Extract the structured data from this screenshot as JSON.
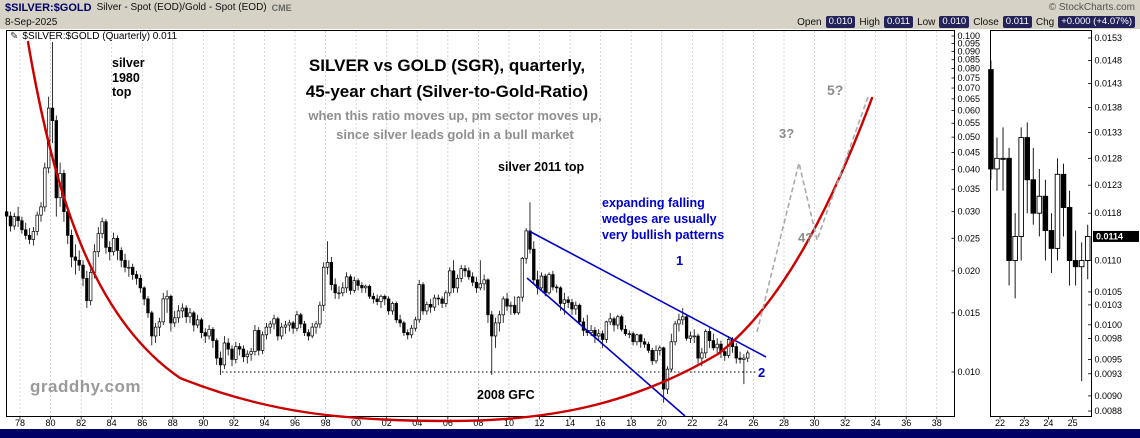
{
  "header": {
    "symbol": "$SILVER:$GOLD",
    "description": "Silver - Spot (EOD)/Gold - Spot (EOD)",
    "exchange": "CME",
    "copyright": "© StockCharts.com",
    "date": "8-Sep-2025",
    "quote": {
      "open_label": "Open",
      "open": "0.010",
      "high_label": "High",
      "high": "0.011",
      "low_label": "Low",
      "low": "0.010",
      "close_label": "Close",
      "close": "0.011",
      "chg_label": "Chg",
      "chg": "+0.000 (+4.07%)"
    }
  },
  "icons": {
    "annotation_mark": "✎"
  },
  "chart_label": "$SILVER:$GOLD (Quarterly) 0.011",
  "annotations": {
    "s1980": {
      "l1": "silver",
      "l2": "1980",
      "l3": "top"
    },
    "title": {
      "l1": "SILVER vs GOLD (SGR), quarterly,",
      "l2": "45-year chart (Silver-to-Gold-Ratio)"
    },
    "subtitle": {
      "l1": "when this ratio moves up, pm sector moves up,",
      "l2": "since silver leads gold in a bull market"
    },
    "s2011": "silver 2011 top",
    "wedge": {
      "l1": "expanding falling",
      "l2": "wedges are usually",
      "l3": "very bullish patterns"
    },
    "waves": {
      "w1": "1",
      "w2": "2",
      "w3": "3?",
      "w4": "4?",
      "w5": "5?"
    },
    "gfc": "2008 GFC",
    "watermark": "graddhy.com"
  },
  "colors": {
    "header_bg": "#d6d2c6",
    "quote_chip_bg": "#23235a",
    "cup_red": "#cc0000",
    "pattern_blue": "#0000cc",
    "projection_gray": "#aaaaaa",
    "grid": "#cccccc",
    "bottom_bar": "#000066",
    "candle_up": "#ffffff",
    "candle_down": "#000000"
  },
  "chart_data": {
    "type": "candlestick",
    "symbol": "$SILVER:$GOLD",
    "timeframe": "Quarterly",
    "scale": "log",
    "title": "SILVER vs GOLD (SGR), quarterly, 45-year chart (Silver-to-Gold-Ratio)",
    "start_year": 1977,
    "interval_years": 0.25,
    "support_level": 0.01,
    "last_close": 0.0114,
    "x_ticks": [
      "78",
      "80",
      "82",
      "84",
      "86",
      "88",
      "90",
      "92",
      "94",
      "96",
      "98",
      "00",
      "02",
      "04",
      "06",
      "08",
      "10",
      "12",
      "14",
      "16",
      "18",
      "20",
      "22",
      "24",
      "26",
      "28",
      "30",
      "32",
      "34",
      "36",
      "38"
    ],
    "x_tick_years": [
      1978,
      1980,
      1982,
      1984,
      1986,
      1988,
      1990,
      1992,
      1994,
      1996,
      1998,
      2000,
      2002,
      2004,
      2006,
      2008,
      2010,
      2012,
      2014,
      2016,
      2018,
      2020,
      2022,
      2024,
      2026,
      2028,
      2030,
      2032,
      2034,
      2036,
      2038
    ],
    "y_ticks": [
      0.1,
      0.095,
      0.09,
      0.085,
      0.08,
      0.075,
      0.07,
      0.065,
      0.06,
      0.055,
      0.05,
      0.045,
      0.04,
      0.035,
      0.03,
      0.025,
      0.02,
      0.015,
      0.01
    ],
    "ohlc": [
      [
        0.03,
        0.032,
        0.028,
        0.0291
      ],
      [
        0.0291,
        0.03,
        0.0262,
        0.0272
      ],
      [
        0.0272,
        0.0298,
        0.0265,
        0.029
      ],
      [
        0.029,
        0.031,
        0.027,
        0.0282
      ],
      [
        0.0282,
        0.029,
        0.0258,
        0.0265
      ],
      [
        0.0265,
        0.0278,
        0.0248,
        0.0255
      ],
      [
        0.0255,
        0.0268,
        0.024,
        0.0248
      ],
      [
        0.0248,
        0.027,
        0.0238,
        0.0262
      ],
      [
        0.0262,
        0.03,
        0.0255,
        0.0293
      ],
      [
        0.0293,
        0.032,
        0.028,
        0.031
      ],
      [
        0.031,
        0.042,
        0.03,
        0.0405
      ],
      [
        0.0405,
        0.066,
        0.039,
        0.061
      ],
      [
        0.061,
        0.096,
        0.048,
        0.056
      ],
      [
        0.056,
        0.058,
        0.029,
        0.033
      ],
      [
        0.033,
        0.042,
        0.031,
        0.039
      ],
      [
        0.039,
        0.04,
        0.028,
        0.03
      ],
      [
        0.03,
        0.031,
        0.024,
        0.0255
      ],
      [
        0.0255,
        0.0265,
        0.0205,
        0.022
      ],
      [
        0.022,
        0.024,
        0.0195,
        0.0215
      ],
      [
        0.0215,
        0.023,
        0.02,
        0.0208
      ],
      [
        0.0208,
        0.0215,
        0.018,
        0.019
      ],
      [
        0.019,
        0.02,
        0.0155,
        0.0163
      ],
      [
        0.0163,
        0.0205,
        0.0158,
        0.0198
      ],
      [
        0.0198,
        0.024,
        0.019,
        0.0228
      ],
      [
        0.0228,
        0.027,
        0.022,
        0.0258
      ],
      [
        0.0258,
        0.0288,
        0.025,
        0.028
      ],
      [
        0.028,
        0.0285,
        0.0225,
        0.0235
      ],
      [
        0.0235,
        0.0245,
        0.0215,
        0.0228
      ],
      [
        0.0228,
        0.026,
        0.0222,
        0.025
      ],
      [
        0.025,
        0.0255,
        0.0215,
        0.023
      ],
      [
        0.023,
        0.0235,
        0.0205,
        0.0215
      ],
      [
        0.0215,
        0.0225,
        0.0198,
        0.0205
      ],
      [
        0.0205,
        0.0215,
        0.0192,
        0.0205
      ],
      [
        0.0205,
        0.021,
        0.0188,
        0.0195
      ],
      [
        0.0195,
        0.02,
        0.0182,
        0.019
      ],
      [
        0.019,
        0.0195,
        0.0172,
        0.0178
      ],
      [
        0.0178,
        0.018,
        0.0158,
        0.0165
      ],
      [
        0.0165,
        0.0168,
        0.0145,
        0.015
      ],
      [
        0.015,
        0.0152,
        0.012,
        0.0128
      ],
      [
        0.0128,
        0.014,
        0.0122,
        0.0136
      ],
      [
        0.0136,
        0.0145,
        0.0128,
        0.0141
      ],
      [
        0.0141,
        0.0172,
        0.0138,
        0.0165
      ],
      [
        0.0165,
        0.0175,
        0.015,
        0.0168
      ],
      [
        0.0168,
        0.017,
        0.0132,
        0.014
      ],
      [
        0.014,
        0.0152,
        0.0136,
        0.0145
      ],
      [
        0.0145,
        0.0158,
        0.014,
        0.0152
      ],
      [
        0.0152,
        0.016,
        0.0145,
        0.0155
      ],
      [
        0.0155,
        0.0158,
        0.014,
        0.0146
      ],
      [
        0.0146,
        0.0155,
        0.014,
        0.015
      ],
      [
        0.015,
        0.0152,
        0.0132,
        0.0138
      ],
      [
        0.0138,
        0.0148,
        0.0135,
        0.0143
      ],
      [
        0.0143,
        0.0145,
        0.0126,
        0.0131
      ],
      [
        0.0131,
        0.0135,
        0.0122,
        0.0128
      ],
      [
        0.0128,
        0.0138,
        0.0125,
        0.0134
      ],
      [
        0.0134,
        0.0136,
        0.0118,
        0.0124
      ],
      [
        0.0124,
        0.0126,
        0.0105,
        0.011
      ],
      [
        0.011,
        0.0115,
        0.0098,
        0.0105
      ],
      [
        0.0105,
        0.0128,
        0.0102,
        0.0122
      ],
      [
        0.0122,
        0.0126,
        0.0112,
        0.0117
      ],
      [
        0.0117,
        0.012,
        0.0104,
        0.0109
      ],
      [
        0.0109,
        0.0123,
        0.0106,
        0.0119
      ],
      [
        0.0119,
        0.0122,
        0.0112,
        0.0117
      ],
      [
        0.0117,
        0.012,
        0.0107,
        0.0111
      ],
      [
        0.0111,
        0.0116,
        0.0106,
        0.0113
      ],
      [
        0.0113,
        0.0118,
        0.0108,
        0.0115
      ],
      [
        0.0115,
        0.0138,
        0.0112,
        0.0133
      ],
      [
        0.0133,
        0.0136,
        0.0112,
        0.0116
      ],
      [
        0.0116,
        0.0132,
        0.0113,
        0.0129
      ],
      [
        0.0129,
        0.014,
        0.0125,
        0.0136
      ],
      [
        0.0136,
        0.0142,
        0.013,
        0.0139
      ],
      [
        0.0139,
        0.0148,
        0.0134,
        0.0144
      ],
      [
        0.0144,
        0.0146,
        0.0124,
        0.0128
      ],
      [
        0.0128,
        0.014,
        0.0125,
        0.0136
      ],
      [
        0.0136,
        0.0142,
        0.013,
        0.0138
      ],
      [
        0.0138,
        0.0143,
        0.0132,
        0.014
      ],
      [
        0.014,
        0.0142,
        0.013,
        0.0135
      ],
      [
        0.0135,
        0.0152,
        0.0132,
        0.0148
      ],
      [
        0.0148,
        0.015,
        0.0135,
        0.0139
      ],
      [
        0.0139,
        0.0142,
        0.0128,
        0.0131
      ],
      [
        0.0131,
        0.0134,
        0.0124,
        0.0128
      ],
      [
        0.0128,
        0.014,
        0.0126,
        0.0136
      ],
      [
        0.0136,
        0.0142,
        0.013,
        0.0139
      ],
      [
        0.0139,
        0.0162,
        0.0135,
        0.0158
      ],
      [
        0.0158,
        0.0212,
        0.0152,
        0.0205
      ],
      [
        0.0205,
        0.0245,
        0.0195,
        0.0212
      ],
      [
        0.0212,
        0.022,
        0.0175,
        0.0182
      ],
      [
        0.0182,
        0.019,
        0.0165,
        0.0172
      ],
      [
        0.0172,
        0.018,
        0.0165,
        0.0172
      ],
      [
        0.0172,
        0.0185,
        0.0168,
        0.0178
      ],
      [
        0.0178,
        0.0198,
        0.0172,
        0.0192
      ],
      [
        0.0192,
        0.0195,
        0.017,
        0.0175
      ],
      [
        0.0175,
        0.0192,
        0.0172,
        0.0187
      ],
      [
        0.0187,
        0.019,
        0.0175,
        0.0181
      ],
      [
        0.0181,
        0.0185,
        0.0172,
        0.0178
      ],
      [
        0.0178,
        0.0182,
        0.0172,
        0.018
      ],
      [
        0.018,
        0.0182,
        0.0165,
        0.0168
      ],
      [
        0.0168,
        0.0172,
        0.016,
        0.0165
      ],
      [
        0.0165,
        0.017,
        0.0158,
        0.0162
      ],
      [
        0.0162,
        0.017,
        0.0155,
        0.0168
      ],
      [
        0.0168,
        0.017,
        0.0158,
        0.0165
      ],
      [
        0.0165,
        0.0168,
        0.0148,
        0.0152
      ],
      [
        0.0152,
        0.0162,
        0.0148,
        0.016
      ],
      [
        0.016,
        0.0162,
        0.014,
        0.0143
      ],
      [
        0.0143,
        0.0148,
        0.0136,
        0.014
      ],
      [
        0.014,
        0.0142,
        0.0128,
        0.0131
      ],
      [
        0.0131,
        0.0134,
        0.0125,
        0.0129
      ],
      [
        0.0129,
        0.0138,
        0.0126,
        0.0135
      ],
      [
        0.0135,
        0.0146,
        0.0132,
        0.0143
      ],
      [
        0.0143,
        0.0188,
        0.014,
        0.0182
      ],
      [
        0.0182,
        0.0185,
        0.0148,
        0.0152
      ],
      [
        0.0152,
        0.0162,
        0.0148,
        0.0159
      ],
      [
        0.0159,
        0.0165,
        0.015,
        0.0156
      ],
      [
        0.0156,
        0.017,
        0.0152,
        0.0166
      ],
      [
        0.0166,
        0.017,
        0.0158,
        0.0165
      ],
      [
        0.0165,
        0.0168,
        0.0155,
        0.016
      ],
      [
        0.016,
        0.0175,
        0.0156,
        0.0172
      ],
      [
        0.0172,
        0.0205,
        0.0168,
        0.02
      ],
      [
        0.02,
        0.0215,
        0.0172,
        0.0178
      ],
      [
        0.0178,
        0.0195,
        0.0172,
        0.019
      ],
      [
        0.019,
        0.0208,
        0.0185,
        0.0203
      ],
      [
        0.0203,
        0.0208,
        0.0192,
        0.02
      ],
      [
        0.02,
        0.0205,
        0.0188,
        0.0192
      ],
      [
        0.0192,
        0.0198,
        0.018,
        0.0185
      ],
      [
        0.0185,
        0.0192,
        0.0172,
        0.0178
      ],
      [
        0.0178,
        0.0215,
        0.0175,
        0.0183
      ],
      [
        0.0183,
        0.0195,
        0.0175,
        0.0188
      ],
      [
        0.0188,
        0.019,
        0.014,
        0.0148
      ],
      [
        0.0148,
        0.0152,
        0.0098,
        0.0128
      ],
      [
        0.0128,
        0.0145,
        0.0118,
        0.014
      ],
      [
        0.014,
        0.0152,
        0.0132,
        0.0148
      ],
      [
        0.0148,
        0.0168,
        0.014,
        0.0165
      ],
      [
        0.0165,
        0.0172,
        0.0152,
        0.0157
      ],
      [
        0.0157,
        0.0162,
        0.0148,
        0.0158
      ],
      [
        0.0158,
        0.0168,
        0.0148,
        0.015
      ],
      [
        0.015,
        0.0168,
        0.0148,
        0.0167
      ],
      [
        0.0167,
        0.022,
        0.0162,
        0.0218
      ],
      [
        0.0218,
        0.0268,
        0.021,
        0.0263
      ],
      [
        0.0263,
        0.032,
        0.0225,
        0.0232
      ],
      [
        0.0232,
        0.0245,
        0.0182,
        0.0188
      ],
      [
        0.0188,
        0.02,
        0.017,
        0.0178
      ],
      [
        0.0178,
        0.0198,
        0.0175,
        0.0193
      ],
      [
        0.0193,
        0.0196,
        0.0168,
        0.0172
      ],
      [
        0.0172,
        0.0198,
        0.017,
        0.0195
      ],
      [
        0.0195,
        0.02,
        0.0175,
        0.0179
      ],
      [
        0.0179,
        0.0182,
        0.0172,
        0.0178
      ],
      [
        0.0178,
        0.018,
        0.0152,
        0.016
      ],
      [
        0.016,
        0.0172,
        0.0148,
        0.0164
      ],
      [
        0.0164,
        0.0168,
        0.0155,
        0.0161
      ],
      [
        0.0161,
        0.0165,
        0.0148,
        0.0154
      ],
      [
        0.0154,
        0.0162,
        0.0148,
        0.0158
      ],
      [
        0.0158,
        0.016,
        0.0138,
        0.0141
      ],
      [
        0.0141,
        0.0145,
        0.0128,
        0.0133
      ],
      [
        0.0133,
        0.0148,
        0.0128,
        0.0131
      ],
      [
        0.0131,
        0.0138,
        0.0128,
        0.0133
      ],
      [
        0.0133,
        0.0136,
        0.0122,
        0.0128
      ],
      [
        0.0128,
        0.0134,
        0.0124,
        0.013
      ],
      [
        0.013,
        0.0133,
        0.0118,
        0.0125
      ],
      [
        0.0125,
        0.0142,
        0.0122,
        0.0141
      ],
      [
        0.0141,
        0.015,
        0.0138,
        0.0144
      ],
      [
        0.0144,
        0.0146,
        0.0132,
        0.0138
      ],
      [
        0.0138,
        0.0148,
        0.0134,
        0.0146
      ],
      [
        0.0146,
        0.0148,
        0.0132,
        0.0134
      ],
      [
        0.0134,
        0.0138,
        0.0128,
        0.013
      ],
      [
        0.013,
        0.0133,
        0.0126,
        0.013
      ],
      [
        0.013,
        0.0132,
        0.012,
        0.0123
      ],
      [
        0.0123,
        0.013,
        0.012,
        0.0129
      ],
      [
        0.0129,
        0.013,
        0.0118,
        0.0123
      ],
      [
        0.0123,
        0.0126,
        0.0118,
        0.0121
      ],
      [
        0.0121,
        0.0123,
        0.0114,
        0.0116
      ],
      [
        0.0116,
        0.0118,
        0.0105,
        0.0108
      ],
      [
        0.0108,
        0.012,
        0.0106,
        0.0116
      ],
      [
        0.0116,
        0.012,
        0.0112,
        0.0118
      ],
      [
        0.0118,
        0.0119,
        0.0081,
        0.0089
      ],
      [
        0.0089,
        0.0104,
        0.0086,
        0.0102
      ],
      [
        0.0102,
        0.013,
        0.01,
        0.0123
      ],
      [
        0.0123,
        0.0142,
        0.012,
        0.0139
      ],
      [
        0.0139,
        0.0149,
        0.0132,
        0.0143
      ],
      [
        0.0143,
        0.0155,
        0.0138,
        0.0146
      ],
      [
        0.0146,
        0.0148,
        0.0124,
        0.0126
      ],
      [
        0.0126,
        0.0132,
        0.0122,
        0.0128
      ],
      [
        0.0128,
        0.0134,
        0.0122,
        0.0128
      ],
      [
        0.0128,
        0.013,
        0.0106,
        0.011
      ],
      [
        0.011,
        0.0118,
        0.0104,
        0.0114
      ],
      [
        0.0114,
        0.0134,
        0.011,
        0.0132
      ],
      [
        0.0132,
        0.0135,
        0.0118,
        0.0124
      ],
      [
        0.0124,
        0.013,
        0.0116,
        0.0118
      ],
      [
        0.0118,
        0.0126,
        0.0114,
        0.0121
      ],
      [
        0.0121,
        0.0124,
        0.011,
        0.0115
      ],
      [
        0.0115,
        0.0118,
        0.0108,
        0.0112
      ],
      [
        0.0112,
        0.0128,
        0.011,
        0.0125
      ],
      [
        0.0125,
        0.0127,
        0.0114,
        0.0119
      ],
      [
        0.0119,
        0.0122,
        0.0106,
        0.011
      ],
      [
        0.011,
        0.0115,
        0.0106,
        0.0109
      ],
      [
        0.0109,
        0.0113,
        0.0092,
        0.011
      ],
      [
        0.011,
        0.0116,
        0.0107,
        0.0114
      ]
    ],
    "mini_panel": {
      "visible_from": 2021.5,
      "x_ticks": [
        "22",
        "23",
        "24",
        "25"
      ],
      "x_tick_years": [
        2022,
        2023,
        2024,
        2025
      ],
      "y_ticks": [
        0.0153,
        0.0148,
        0.0143,
        0.0138,
        0.0133,
        0.0128,
        0.0123,
        0.0118,
        0.011,
        0.0105,
        0.0103,
        0.01,
        0.0098,
        0.0095,
        0.0093,
        0.009,
        0.0088
      ],
      "highlight_value": 0.0114,
      "last_label": "0.0114"
    }
  }
}
